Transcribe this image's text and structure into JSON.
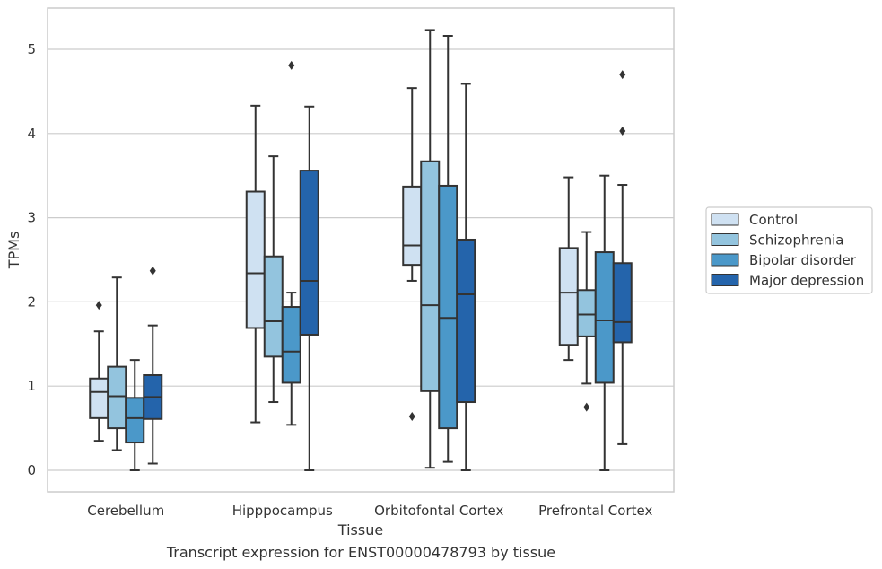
{
  "caption": "Transcript expression for ENST00000478793 by tissue",
  "colors": {
    "grid": "#cccccc",
    "frame": "#cccccc",
    "line": "#333333",
    "series": [
      "#cfe1f2",
      "#93c4de",
      "#4b98c9",
      "#2464ab"
    ]
  },
  "chart_data": {
    "type": "box",
    "xlabel": "Tissue",
    "ylabel": "TPMs",
    "ylim": [
      -0.25,
      5.5
    ],
    "yticks": [
      0,
      1,
      2,
      3,
      4,
      5
    ],
    "grid": "horizontal",
    "legend_position": "right",
    "categories": [
      "Cerebellum",
      "Hipppocampus",
      "Orbitofontal Cortex",
      "Prefrontal Cortex"
    ],
    "series": [
      {
        "name": "Control",
        "boxes": [
          {
            "whisker_low": 0.35,
            "q1": 0.62,
            "median": 0.93,
            "q3": 1.09,
            "whisker_high": 1.65,
            "outliers": [
              1.96
            ]
          },
          {
            "whisker_low": 0.57,
            "q1": 1.69,
            "median": 2.34,
            "q3": 3.31,
            "whisker_high": 4.33,
            "outliers": []
          },
          {
            "whisker_low": 2.25,
            "q1": 2.44,
            "median": 2.67,
            "q3": 3.37,
            "whisker_high": 4.54,
            "outliers": [
              0.64
            ]
          },
          {
            "whisker_low": 1.31,
            "q1": 1.49,
            "median": 2.11,
            "q3": 2.64,
            "whisker_high": 3.48,
            "outliers": []
          }
        ]
      },
      {
        "name": "Schizophrenia",
        "boxes": [
          {
            "whisker_low": 0.24,
            "q1": 0.5,
            "median": 0.88,
            "q3": 1.23,
            "whisker_high": 2.29,
            "outliers": []
          },
          {
            "whisker_low": 0.81,
            "q1": 1.35,
            "median": 1.77,
            "q3": 2.54,
            "whisker_high": 3.73,
            "outliers": []
          },
          {
            "whisker_low": 0.03,
            "q1": 0.94,
            "median": 1.96,
            "q3": 3.67,
            "whisker_high": 5.23,
            "outliers": []
          },
          {
            "whisker_low": 1.03,
            "q1": 1.59,
            "median": 1.85,
            "q3": 2.14,
            "whisker_high": 2.83,
            "outliers": [
              0.75
            ]
          }
        ]
      },
      {
        "name": "Bipolar disorder",
        "boxes": [
          {
            "whisker_low": 0.0,
            "q1": 0.33,
            "median": 0.62,
            "q3": 0.86,
            "whisker_high": 1.31,
            "outliers": []
          },
          {
            "whisker_low": 0.54,
            "q1": 1.04,
            "median": 1.41,
            "q3": 1.94,
            "whisker_high": 2.11,
            "outliers": [
              4.81
            ]
          },
          {
            "whisker_low": 0.1,
            "q1": 0.5,
            "median": 1.81,
            "q3": 3.38,
            "whisker_high": 5.16,
            "outliers": []
          },
          {
            "whisker_low": 0.0,
            "q1": 1.04,
            "median": 1.78,
            "q3": 2.59,
            "whisker_high": 3.5,
            "outliers": []
          }
        ]
      },
      {
        "name": "Major depression",
        "boxes": [
          {
            "whisker_low": 0.08,
            "q1": 0.61,
            "median": 0.87,
            "q3": 1.13,
            "whisker_high": 1.72,
            "outliers": [
              2.37
            ]
          },
          {
            "whisker_low": 0.0,
            "q1": 1.61,
            "median": 2.25,
            "q3": 3.56,
            "whisker_high": 4.32,
            "outliers": []
          },
          {
            "whisker_low": 0.0,
            "q1": 0.81,
            "median": 2.09,
            "q3": 2.74,
            "whisker_high": 4.59,
            "outliers": []
          },
          {
            "whisker_low": 0.31,
            "q1": 1.52,
            "median": 1.76,
            "q3": 2.46,
            "whisker_high": 3.39,
            "outliers": [
              4.03,
              4.7
            ]
          }
        ]
      }
    ]
  }
}
